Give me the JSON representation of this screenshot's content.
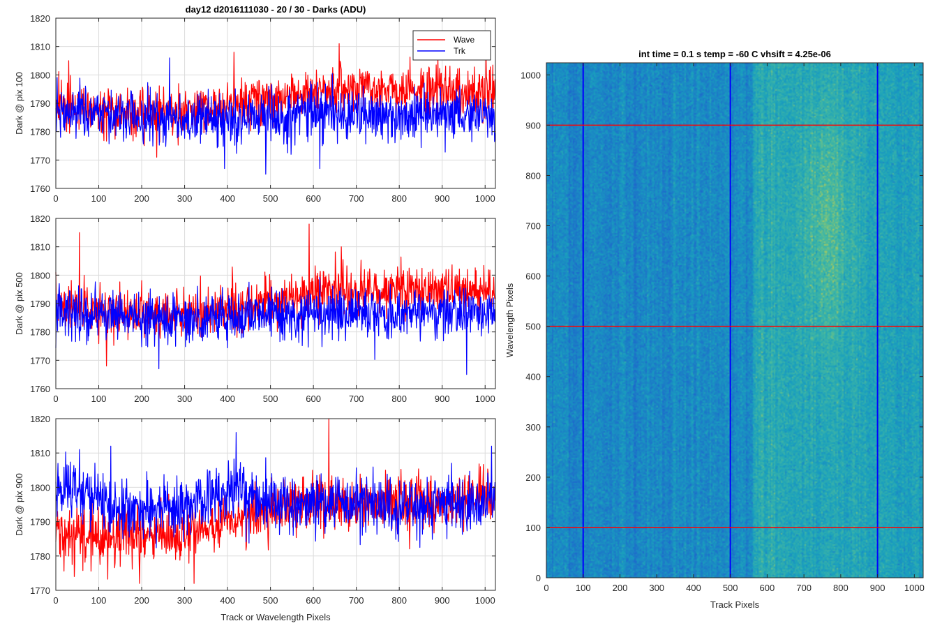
{
  "figure_title": "day12 d2016111030 - 20 / 30 - Darks (ADU)",
  "chart_data": [
    {
      "type": "line",
      "title": "day12 d2016111030 - 20 / 30 - Darks (ADU)",
      "xlabel": "",
      "ylabel": "Dark @ pix 100",
      "xlim": [
        0,
        1024
      ],
      "ylim": [
        1760,
        1820
      ],
      "xticks": [
        0,
        100,
        200,
        300,
        400,
        500,
        600,
        700,
        800,
        900,
        1000
      ],
      "yticks": [
        1760,
        1770,
        1780,
        1790,
        1800,
        1810,
        1820
      ],
      "grid": true,
      "legend": {
        "location": "top-right",
        "entries": [
          "Wave",
          "Trk"
        ]
      },
      "series": [
        {
          "name": "Wave",
          "color": "#ff0000",
          "n_points": 1024,
          "mean_profile": [
            [
              0,
              1790
            ],
            [
              150,
              1787
            ],
            [
              300,
              1787
            ],
            [
              400,
              1789
            ],
            [
              500,
              1792
            ],
            [
              600,
              1794
            ],
            [
              700,
              1795
            ],
            [
              800,
              1795
            ],
            [
              900,
              1795
            ],
            [
              1024,
              1795
            ]
          ],
          "noise_sd": 4.0,
          "extremes": [
            [
              30,
              1805
            ],
            [
              235,
              1771
            ],
            [
              415,
              1808
            ],
            [
              660,
              1811
            ],
            [
              1002,
              1808
            ]
          ]
        },
        {
          "name": "Trk",
          "color": "#0000ff",
          "n_points": 1024,
          "mean_profile": [
            [
              0,
              1787
            ],
            [
              200,
              1785
            ],
            [
              400,
              1785
            ],
            [
              600,
              1786
            ],
            [
              800,
              1786
            ],
            [
              1024,
              1786
            ]
          ],
          "noise_sd": 4.5,
          "extremes": [
            [
              265,
              1806
            ],
            [
              393,
              1767
            ],
            [
              489,
              1765
            ],
            [
              548,
              1772
            ],
            [
              615,
              1767
            ]
          ]
        }
      ]
    },
    {
      "type": "line",
      "title": "",
      "xlabel": "",
      "ylabel": "Dark @ pix 500",
      "xlim": [
        0,
        1024
      ],
      "ylim": [
        1760,
        1820
      ],
      "xticks": [
        0,
        100,
        200,
        300,
        400,
        500,
        600,
        700,
        800,
        900,
        1000
      ],
      "yticks": [
        1760,
        1770,
        1780,
        1790,
        1800,
        1810,
        1820
      ],
      "grid": true,
      "series": [
        {
          "name": "Wave",
          "color": "#ff0000",
          "n_points": 1024,
          "mean_profile": [
            [
              0,
              1789
            ],
            [
              150,
              1786
            ],
            [
              300,
              1786
            ],
            [
              400,
              1788
            ],
            [
              500,
              1791
            ],
            [
              600,
              1794
            ],
            [
              700,
              1795
            ],
            [
              800,
              1795
            ],
            [
              900,
              1795
            ],
            [
              1024,
              1795
            ]
          ],
          "noise_sd": 4.2,
          "extremes": [
            [
              55,
              1815
            ],
            [
              118,
              1768
            ],
            [
              590,
              1818
            ],
            [
              665,
              1810
            ]
          ]
        },
        {
          "name": "Trk",
          "color": "#0000ff",
          "n_points": 1024,
          "mean_profile": [
            [
              0,
              1787
            ],
            [
              200,
              1785
            ],
            [
              400,
              1785
            ],
            [
              600,
              1786
            ],
            [
              800,
              1786
            ],
            [
              1024,
              1787
            ]
          ],
          "noise_sd": 4.5,
          "extremes": [
            [
              240,
              1767
            ],
            [
              957,
              1765
            ]
          ]
        }
      ]
    },
    {
      "type": "line",
      "title": "",
      "xlabel": "Track or Wavelength Pixels",
      "ylabel": "Dark @ pix 900",
      "xlim": [
        0,
        1024
      ],
      "ylim": [
        1770,
        1820
      ],
      "xticks": [
        0,
        100,
        200,
        300,
        400,
        500,
        600,
        700,
        800,
        900,
        1000
      ],
      "yticks": [
        1770,
        1780,
        1790,
        1800,
        1810,
        1820
      ],
      "grid": true,
      "series": [
        {
          "name": "Wave",
          "color": "#ff0000",
          "n_points": 1024,
          "mean_profile": [
            [
              0,
              1787
            ],
            [
              150,
              1785
            ],
            [
              300,
              1787
            ],
            [
              400,
              1790
            ],
            [
              500,
              1794
            ],
            [
              600,
              1795
            ],
            [
              700,
              1796
            ],
            [
              800,
              1796
            ],
            [
              900,
              1796
            ],
            [
              1024,
              1797
            ]
          ],
          "noise_sd": 4.0,
          "extremes": [
            [
              636,
              1820
            ],
            [
              195,
              1772
            ],
            [
              322,
              1772
            ],
            [
              43,
              1774
            ]
          ]
        },
        {
          "name": "Trk",
          "color": "#0000ff",
          "n_points": 1024,
          "mean_profile": [
            [
              0,
              1800
            ],
            [
              80,
              1798
            ],
            [
              150,
              1794
            ],
            [
              300,
              1794
            ],
            [
              420,
              1800
            ],
            [
              500,
              1795
            ],
            [
              700,
              1795
            ],
            [
              1024,
              1795
            ]
          ],
          "noise_sd": 4.2,
          "extremes": [
            [
              420,
              1816
            ],
            [
              1015,
              1812
            ],
            [
              55,
              1811
            ],
            [
              128,
              1812
            ]
          ]
        }
      ]
    },
    {
      "type": "heatmap",
      "title": "int time = 0.1 s   temp = -60 C   vhsift = 4.25e-06",
      "xlabel": "Track Pixels",
      "ylabel": "Wavelength Pixels",
      "xlim": [
        0,
        1024
      ],
      "ylim": [
        0,
        1024
      ],
      "xticks": [
        0,
        100,
        200,
        300,
        400,
        500,
        600,
        700,
        800,
        900,
        1000
      ],
      "yticks": [
        0,
        100,
        200,
        300,
        400,
        500,
        600,
        700,
        800,
        900,
        1000
      ],
      "colormap": "parula",
      "colors": {
        "low": "#1f78c8",
        "mid": "#1ea6b8",
        "high": "#a8c85a"
      },
      "description_values": {
        "left_region_level": 0.22,
        "right_region_level": 0.55,
        "bright_streak_track": 760,
        "bright_streak_wavelength": 700
      },
      "vertical_markers": {
        "color": "#0000ff",
        "x": [
          100,
          500,
          900
        ]
      },
      "horizontal_markers": {
        "color": "#ff0000",
        "y": [
          100,
          500,
          900
        ]
      }
    }
  ]
}
